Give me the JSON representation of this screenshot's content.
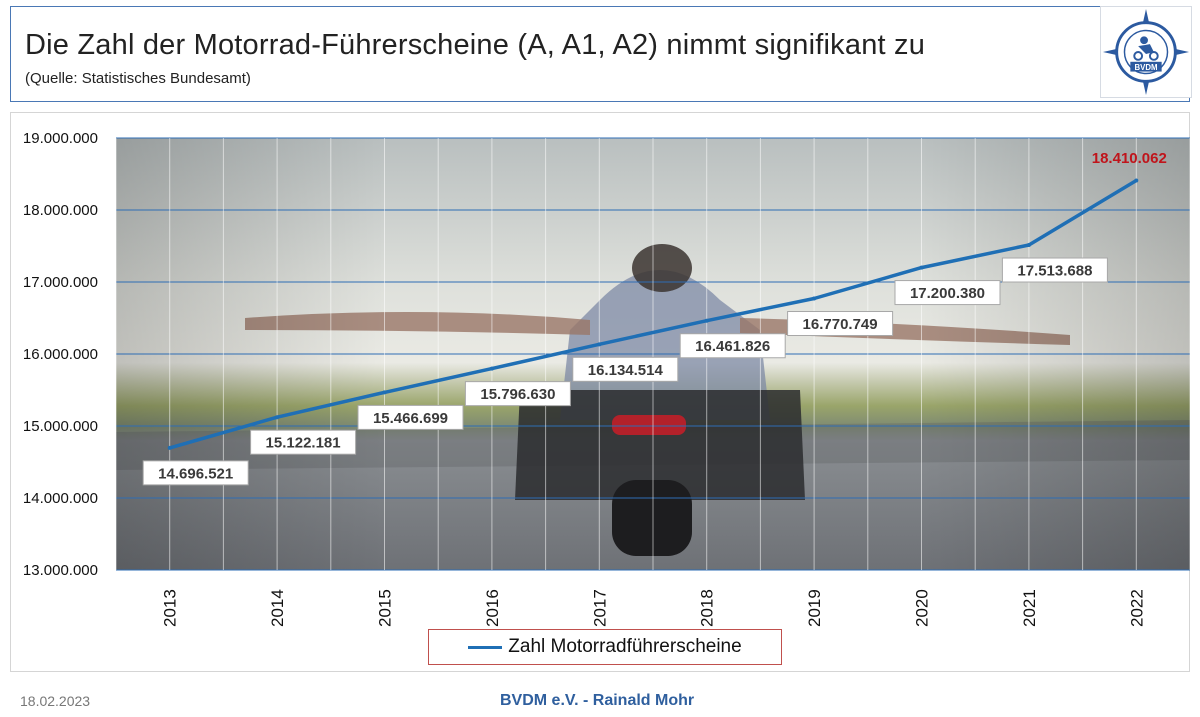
{
  "header": {
    "title": "Die Zahl der Motorrad-Führerscheine (A, A1, A2) nimmt signifikant zu",
    "subtitle": "(Quelle: Statistisches Bundesamt)"
  },
  "logo": {
    "icon": "bvdm-logo-icon",
    "text": "BVDM",
    "ring_text": "Bundesverband der Motorradfahrer e.V."
  },
  "chart_data": {
    "type": "line",
    "title": "",
    "xlabel": "",
    "ylabel": "",
    "categories": [
      "2013",
      "2014",
      "2015",
      "2016",
      "2017",
      "2018",
      "2019",
      "2020",
      "2021",
      "2022"
    ],
    "series": [
      {
        "name": "Zahl Motorradführerscheine",
        "color": "#1f6fb5",
        "values": [
          14696521,
          15122181,
          15466699,
          15796630,
          16134514,
          16461826,
          16770749,
          17200380,
          17513688,
          18410062
        ]
      }
    ],
    "data_labels": [
      "14.696.521",
      "15.122.181",
      "15.466.699",
      "15.796.630",
      "16.134.514",
      "16.461.826",
      "16.770.749",
      "17.200.380",
      "17.513.688",
      "18.410.062"
    ],
    "highlight_label_color": "#c0141b",
    "ylim": [
      13000000,
      19000000
    ],
    "y_ticks": [
      13000000,
      14000000,
      15000000,
      16000000,
      17000000,
      18000000,
      19000000
    ],
    "y_tick_labels": [
      "13.000.000",
      "14.000.000",
      "15.000.000",
      "16.000.000",
      "17.000.000",
      "18.000.000",
      "19.000.000"
    ],
    "grid": true,
    "gridline_color": "#2e6db4",
    "background": "photo of a motorcyclist with outstretched arms on a road",
    "legend_position": "bottom"
  },
  "footer": {
    "date": "18.02.2023",
    "author": "BVDM e.V. - Rainald Mohr"
  }
}
